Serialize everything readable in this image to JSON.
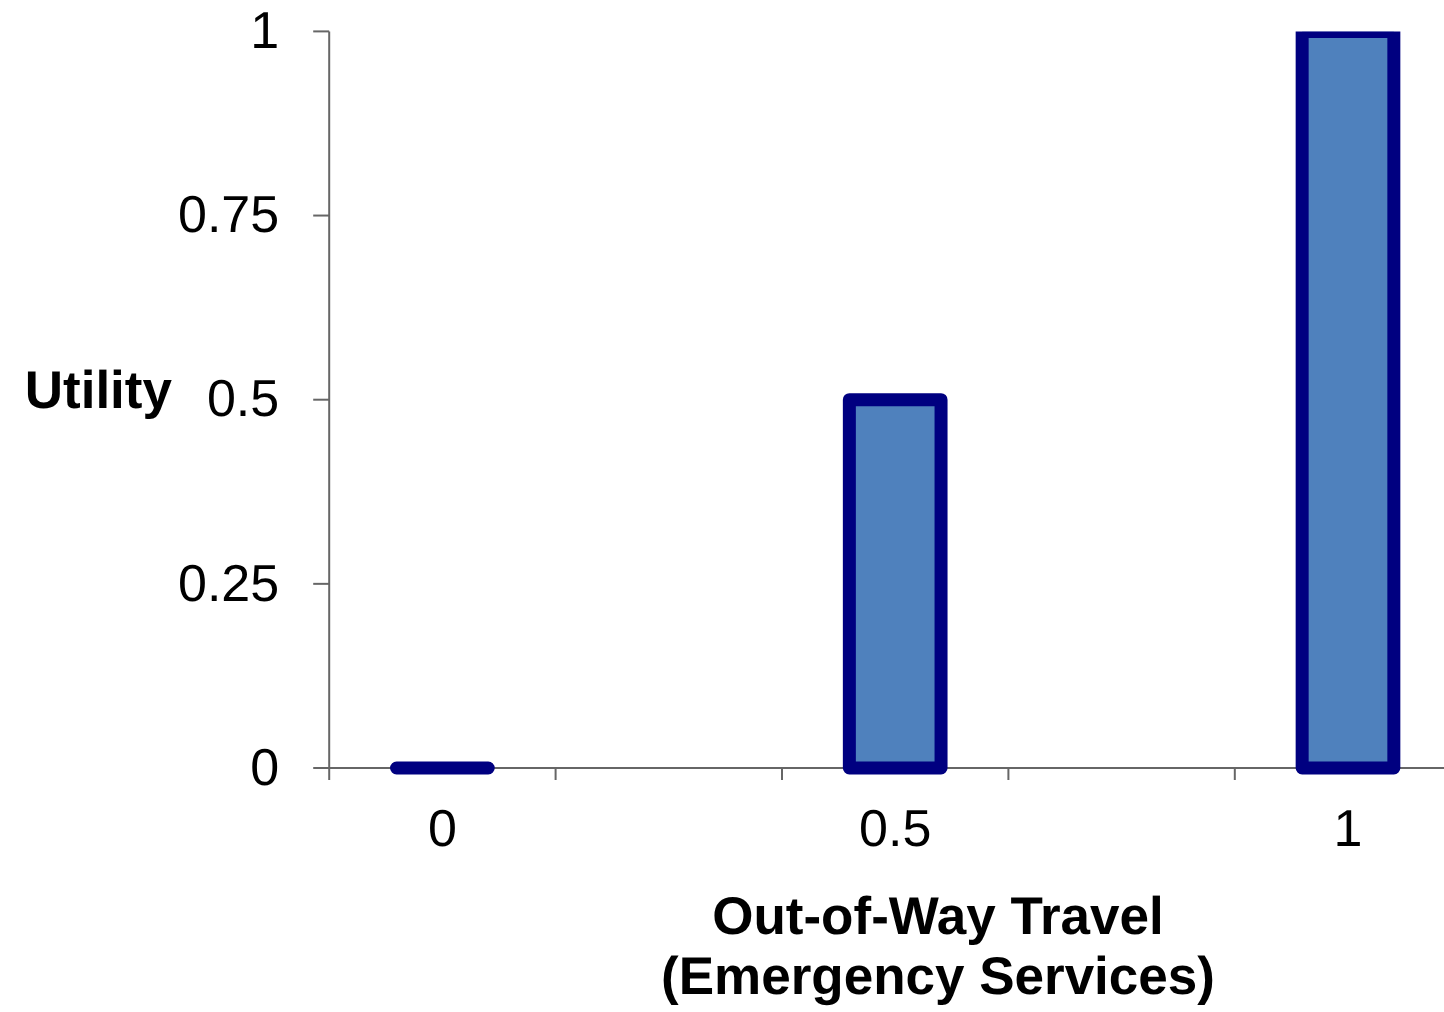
{
  "chart_data": {
    "type": "bar",
    "categories": [
      "0",
      null,
      "0.5",
      null,
      "1"
    ],
    "values": [
      0,
      null,
      0.5,
      null,
      1
    ],
    "colors": [
      "#000080",
      null,
      "#4f81bd",
      null,
      "#4f81bd"
    ],
    "xlabel": "Out-of-Way Travel\n(Emergency Services)",
    "ylabel": "Utility",
    "ylim": [
      0,
      1
    ],
    "yticks": [
      0,
      0.25,
      0.5,
      0.75,
      1
    ]
  }
}
